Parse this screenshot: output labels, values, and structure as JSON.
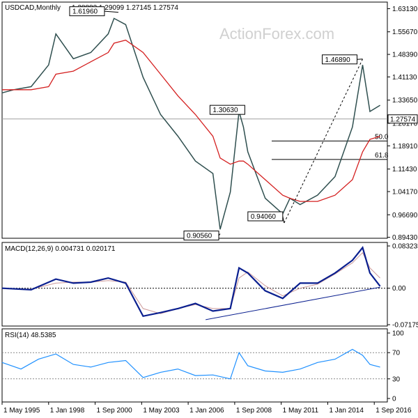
{
  "chart_data": [
    {
      "panel": "price",
      "type": "line",
      "symbol_header": "USDCAD,Monthly",
      "ohlc_header": "1.28883 1.29099 1.27145 1.27574",
      "watermark": "ActionForex.com",
      "ylim": [
        0.8912,
        1.6413
      ],
      "yticks": [
        "1.63130",
        "1.55670",
        "1.48390",
        "1.41130",
        "1.33650",
        "1.26170",
        "1.18910",
        "1.11430",
        "1.04170",
        "0.96690",
        "0.89430"
      ],
      "last_price": "1.27574",
      "x": [
        "1995-05",
        "1996-01",
        "1997-01",
        "1998-01",
        "1998-06",
        "1999-06",
        "2000-06",
        "2001-06",
        "2001-10",
        "2002-06",
        "2003-06",
        "2004-06",
        "2005-06",
        "2006-06",
        "2007-06",
        "2007-11",
        "2008-06",
        "2008-12",
        "2009-03",
        "2009-06",
        "2010-06",
        "2011-06",
        "2011-11",
        "2012-06",
        "2013-06",
        "2014-06",
        "2015-06",
        "2016-01",
        "2016-06",
        "2017-01"
      ],
      "values": [
        1.36,
        1.37,
        1.38,
        1.45,
        1.55,
        1.47,
        1.49,
        1.55,
        1.6,
        1.58,
        1.41,
        1.29,
        1.22,
        1.14,
        1.1,
        0.92,
        1.04,
        1.3,
        1.25,
        1.17,
        1.02,
        0.97,
        1.02,
        1.0,
        1.03,
        1.09,
        1.25,
        1.45,
        1.3,
        1.32
      ],
      "ma_values": [
        1.37,
        1.37,
        1.37,
        1.38,
        1.42,
        1.43,
        1.46,
        1.49,
        1.52,
        1.53,
        1.49,
        1.42,
        1.35,
        1.29,
        1.22,
        1.15,
        1.13,
        1.14,
        1.14,
        1.13,
        1.08,
        1.03,
        1.02,
        1.01,
        1.01,
        1.03,
        1.08,
        1.17,
        1.21,
        1.22
      ],
      "annotations": [
        {
          "label": "1.61960",
          "x": "2002-01",
          "y": 1.6196
        },
        {
          "label": "1.30630",
          "x": "2009-03",
          "y": 1.3063
        },
        {
          "label": "0.90560",
          "x": "2007-11",
          "y": 0.9056
        },
        {
          "label": "0.94060",
          "x": "2011-07",
          "y": 0.9406
        },
        {
          "label": "1.46890",
          "x": "2016-01",
          "y": 1.4689
        }
      ],
      "fib_levels": [
        {
          "label": "50.0",
          "y": 1.2048
        },
        {
          "label": "61.8",
          "y": 1.1452
        }
      ],
      "trendline_dashed": [
        {
          "x": "2011-07",
          "y": 0.9406
        },
        {
          "x": "2016-01",
          "y": 1.4689
        }
      ]
    },
    {
      "panel": "macd",
      "type": "line",
      "header": "MACD(12,26,9) 0.004731 0.020171",
      "ylim": [
        -0.0717,
        0.0833
      ],
      "yticks": [
        "0.083235",
        "0.00",
        "-0.071752"
      ],
      "x": [
        "1995-05",
        "1997-01",
        "1998-06",
        "1999-06",
        "2000-06",
        "2001-06",
        "2002-06",
        "2003-06",
        "2004-06",
        "2005-06",
        "2006-06",
        "2007-06",
        "2008-06",
        "2008-12",
        "2009-06",
        "2010-06",
        "2011-06",
        "2012-06",
        "2013-06",
        "2014-06",
        "2015-06",
        "2016-01",
        "2016-06",
        "2017-01"
      ],
      "values": [
        0.0,
        -0.003,
        0.018,
        0.01,
        0.012,
        0.02,
        0.01,
        -0.055,
        -0.048,
        -0.04,
        -0.03,
        -0.045,
        -0.04,
        0.04,
        0.03,
        -0.005,
        -0.02,
        0.01,
        0.01,
        0.03,
        0.055,
        0.08,
        0.03,
        0.004
      ],
      "signal": [
        0.0,
        -0.002,
        0.01,
        0.012,
        0.012,
        0.015,
        0.012,
        -0.04,
        -0.05,
        -0.04,
        -0.032,
        -0.04,
        -0.04,
        0.02,
        0.032,
        0.005,
        -0.015,
        0.0,
        0.008,
        0.028,
        0.05,
        0.07,
        0.04,
        0.02
      ],
      "support_line": [
        {
          "x": "2007-01",
          "y": -0.062
        },
        {
          "x": "2017-01",
          "y": 0.002
        }
      ]
    },
    {
      "panel": "rsi",
      "type": "line",
      "header": "RSI(14) 48.5385",
      "ylim": [
        0,
        100
      ],
      "yticks": [
        "100",
        "70",
        "30",
        "0"
      ],
      "levels": [
        70,
        30
      ],
      "x": [
        "1995-05",
        "1996-06",
        "1997-06",
        "1998-06",
        "1999-06",
        "2000-06",
        "2001-06",
        "2002-06",
        "2003-06",
        "2004-06",
        "2005-06",
        "2006-06",
        "2007-06",
        "2008-06",
        "2008-12",
        "2009-06",
        "2010-06",
        "2011-06",
        "2012-06",
        "2013-06",
        "2014-06",
        "2015-06",
        "2016-01",
        "2016-06",
        "2017-01"
      ],
      "values": [
        55,
        45,
        60,
        68,
        52,
        48,
        55,
        58,
        32,
        40,
        45,
        35,
        36,
        30,
        70,
        50,
        42,
        40,
        45,
        55,
        60,
        75,
        66,
        52,
        48
      ]
    }
  ],
  "x_axis_labels": [
    "1 May 1995",
    "1 Jan 1998",
    "1 Sep 2000",
    "1 May 2003",
    "1 Jan 2006",
    "1 Sep 2008",
    "1 May 2011",
    "1 Jan 2014",
    "1 Sep 2016"
  ]
}
